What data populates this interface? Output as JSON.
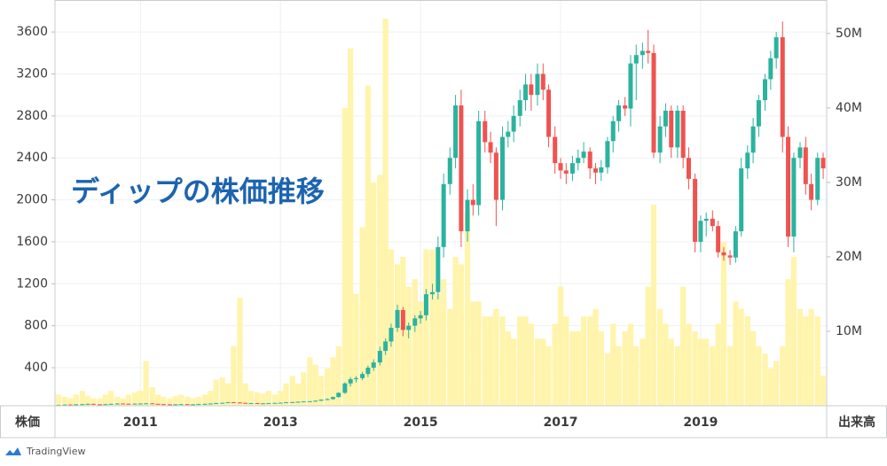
{
  "chart_data": {
    "type": "candlestick",
    "title": "ディップの株価推移",
    "ylabel": "株価",
    "y2label": "出来高",
    "branding": "TradingView",
    "grid": true,
    "x": [
      2009.83,
      2009.92,
      2010,
      2010.08,
      2010.17,
      2010.25,
      2010.33,
      2010.42,
      2010.5,
      2010.58,
      2010.67,
      2010.75,
      2010.83,
      2010.92,
      2011,
      2011.08,
      2011.17,
      2011.25,
      2011.33,
      2011.42,
      2011.5,
      2011.58,
      2011.67,
      2011.75,
      2011.83,
      2011.92,
      2012,
      2012.08,
      2012.17,
      2012.25,
      2012.33,
      2012.42,
      2012.5,
      2012.58,
      2012.67,
      2012.75,
      2012.83,
      2012.92,
      2013,
      2013.08,
      2013.17,
      2013.25,
      2013.33,
      2013.42,
      2013.5,
      2013.58,
      2013.67,
      2013.75,
      2013.83,
      2013.92,
      2014,
      2014.08,
      2014.17,
      2014.25,
      2014.33,
      2014.42,
      2014.5,
      2014.58,
      2014.67,
      2014.75,
      2014.83,
      2014.92,
      2015,
      2015.08,
      2015.17,
      2015.25,
      2015.33,
      2015.42,
      2015.5,
      2015.58,
      2015.67,
      2015.75,
      2015.83,
      2015.92,
      2016,
      2016.08,
      2016.17,
      2016.25,
      2016.33,
      2016.42,
      2016.5,
      2016.58,
      2016.67,
      2016.75,
      2016.83,
      2016.92,
      2017,
      2017.08,
      2017.17,
      2017.25,
      2017.33,
      2017.42,
      2017.5,
      2017.58,
      2017.67,
      2017.75,
      2017.83,
      2017.92,
      2018,
      2018.08,
      2018.17,
      2018.25,
      2018.33,
      2018.42,
      2018.5,
      2018.58,
      2018.67,
      2018.75,
      2018.83,
      2018.92,
      2019,
      2019.08,
      2019.17,
      2019.25,
      2019.33,
      2019.42,
      2019.5,
      2019.58,
      2019.67,
      2019.75,
      2019.83,
      2019.92,
      2020,
      2020.08,
      2020.17,
      2020.25,
      2020.33,
      2020.42,
      2020.5,
      2020.58,
      2020.67,
      2020.75
    ],
    "candles": {
      "up_color": "#2bb39e",
      "down_color": "#ef5350",
      "open": [
        44,
        45,
        48,
        46,
        50,
        52,
        55,
        50,
        48,
        52,
        55,
        58,
        56,
        54,
        57,
        58,
        60,
        55,
        52,
        50,
        48,
        50,
        52,
        49,
        50,
        53,
        55,
        58,
        62,
        65,
        70,
        68,
        64,
        60,
        62,
        58,
        60,
        62,
        64,
        66,
        70,
        72,
        75,
        78,
        80,
        85,
        95,
        100,
        120,
        160,
        250,
        290,
        300,
        340,
        400,
        450,
        560,
        650,
        780,
        950,
        760,
        800,
        870,
        900,
        1100,
        1120,
        1550,
        2150,
        2400,
        2900,
        1700,
        2000,
        1950,
        2750,
        2550,
        2450,
        2000,
        2600,
        2650,
        2800,
        2950,
        3100,
        3000,
        3200,
        3050,
        2600,
        2350,
        2280,
        2250,
        2350,
        2400,
        2460,
        2300,
        2260,
        2310,
        2560,
        2750,
        2900,
        2870,
        3300,
        3380,
        3420,
        3400,
        2450,
        2700,
        2850,
        2500,
        2850,
        2400,
        2200,
        1600,
        1800,
        1820,
        1750,
        1500,
        1470,
        1450,
        1700,
        2300,
        2450,
        2700,
        2950,
        3150,
        3350,
        3550,
        2600,
        1650,
        2400,
        2500,
        2150,
        2000,
        2400
      ],
      "high": [
        47,
        50,
        50,
        52,
        54,
        58,
        57,
        52,
        55,
        58,
        61,
        60,
        58,
        59,
        61,
        63,
        62,
        57,
        54,
        52,
        52,
        54,
        54,
        52,
        55,
        58,
        61,
        65,
        68,
        73,
        73,
        72,
        66,
        64,
        64,
        62,
        63,
        65,
        68,
        72,
        74,
        77,
        80,
        82,
        88,
        98,
        108,
        125,
        165,
        260,
        310,
        320,
        360,
        420,
        480,
        600,
        680,
        820,
        1000,
        980,
        830,
        900,
        940,
        1150,
        1200,
        1650,
        2250,
        2500,
        3000,
        3050,
        2100,
        2150,
        2850,
        2850,
        2650,
        2500,
        2700,
        2750,
        2900,
        3050,
        3200,
        3200,
        3300,
        3300,
        3100,
        2700,
        2400,
        2350,
        2420,
        2480,
        2550,
        2500,
        2350,
        2380,
        2600,
        2800,
        2950,
        2980,
        3380,
        3480,
        3500,
        3620,
        3480,
        2800,
        2920,
        2900,
        2900,
        2900,
        2500,
        2250,
        1850,
        1880,
        1900,
        1800,
        1550,
        1520,
        1750,
        2400,
        2520,
        2780,
        3000,
        3200,
        3420,
        3600,
        3700,
        2700,
        2450,
        2550,
        2600,
        2250,
        2450,
        2450
      ],
      "low": [
        42,
        43,
        44,
        44,
        48,
        50,
        48,
        46,
        46,
        50,
        53,
        54,
        52,
        52,
        55,
        55,
        53,
        50,
        48,
        46,
        46,
        48,
        47,
        47,
        48,
        51,
        53,
        55,
        59,
        62,
        65,
        61,
        58,
        57,
        56,
        55,
        57,
        59,
        61,
        63,
        67,
        69,
        72,
        75,
        77,
        82,
        90,
        96,
        115,
        150,
        220,
        260,
        280,
        310,
        370,
        420,
        520,
        600,
        740,
        700,
        680,
        740,
        820,
        850,
        1050,
        1050,
        1450,
        2050,
        2300,
        1550,
        1600,
        1850,
        1850,
        2450,
        2350,
        1750,
        1900,
        2500,
        2550,
        2700,
        2850,
        2850,
        2900,
        2950,
        2500,
        2250,
        2200,
        2150,
        2180,
        2280,
        2350,
        2200,
        2150,
        2180,
        2250,
        2450,
        2650,
        2800,
        2700,
        2950,
        3250,
        3300,
        2400,
        2350,
        2600,
        2400,
        2400,
        2300,
        2100,
        1500,
        1500,
        1650,
        1700,
        1450,
        1420,
        1380,
        1400,
        1650,
        2200,
        2350,
        2600,
        2850,
        3050,
        3250,
        2450,
        1550,
        1500,
        2300,
        2050,
        1900,
        1950,
        2200
      ],
      "close": [
        45,
        48,
        46,
        50,
        52,
        55,
        50,
        48,
        52,
        55,
        58,
        56,
        54,
        57,
        58,
        60,
        55,
        52,
        50,
        48,
        50,
        52,
        49,
        50,
        53,
        55,
        58,
        62,
        65,
        70,
        68,
        64,
        60,
        62,
        58,
        60,
        62,
        64,
        66,
        70,
        72,
        75,
        78,
        80,
        85,
        95,
        100,
        120,
        160,
        250,
        290,
        300,
        340,
        400,
        450,
        560,
        650,
        780,
        950,
        760,
        800,
        870,
        900,
        1100,
        1120,
        1550,
        2150,
        2400,
        2900,
        1700,
        2000,
        1950,
        2750,
        2550,
        2450,
        2000,
        2600,
        2650,
        2800,
        2950,
        3100,
        3000,
        3200,
        3050,
        2600,
        2350,
        2280,
        2250,
        2350,
        2400,
        2460,
        2300,
        2260,
        2310,
        2560,
        2750,
        2900,
        2870,
        3300,
        3380,
        3420,
        3400,
        2450,
        2700,
        2850,
        2500,
        2850,
        2400,
        2200,
        1600,
        1800,
        1820,
        1750,
        1500,
        1470,
        1450,
        1700,
        2300,
        2450,
        2700,
        2950,
        3150,
        3350,
        3550,
        2600,
        1650,
        2400,
        2500,
        2150,
        2000,
        2400,
        2300
      ]
    },
    "volume": {
      "axis": "y2",
      "color": "#fff3a6",
      "values": [
        1500000,
        1200000,
        1000000,
        1500000,
        2000000,
        1300000,
        1000000,
        1000000,
        1500000,
        2000000,
        1200000,
        1000000,
        1500000,
        1800000,
        2000000,
        6000000,
        2500000,
        1500000,
        1200000,
        1000000,
        1300000,
        1500000,
        1200000,
        1000000,
        1200000,
        1500000,
        2000000,
        3500000,
        3800000,
        3000000,
        8000000,
        14500000,
        3000000,
        2000000,
        1800000,
        1600000,
        2000000,
        1500000,
        2000000,
        3000000,
        4000000,
        3000000,
        4500000,
        6500000,
        5500000,
        4000000,
        5000000,
        6500000,
        8000000,
        40000000,
        48000000,
        15000000,
        24000000,
        43000000,
        30000000,
        31000000,
        52000000,
        21000000,
        19000000,
        20000000,
        16000000,
        17000000,
        14000000,
        21000000,
        21000000,
        15000000,
        17000000,
        13000000,
        20000000,
        19000000,
        26000000,
        14000000,
        14000000,
        12000000,
        12000000,
        13000000,
        12000000,
        10000000,
        9000000,
        12000000,
        12000000,
        11000000,
        9000000,
        9000000,
        8000000,
        11000000,
        16000000,
        12000000,
        10000000,
        10000000,
        12000000,
        12000000,
        13000000,
        10000000,
        7000000,
        11000000,
        8000000,
        10000000,
        11000000,
        8000000,
        9000000,
        16000000,
        27000000,
        13000000,
        11000000,
        9000000,
        8000000,
        16000000,
        11000000,
        10000000,
        9000000,
        9000000,
        8000000,
        11000000,
        22000000,
        8000000,
        14000000,
        13000000,
        12000000,
        10000000,
        8000000,
        7000000,
        5000000,
        6000000,
        8000000,
        17000000,
        20000000,
        13000000,
        12000000,
        13000000,
        12000000,
        4000000
      ]
    },
    "xlim": [
      2009.78,
      2020.8
    ],
    "xticks": [
      2011,
      2013,
      2015,
      2017,
      2019
    ],
    "ylim": [
      37,
      3905
    ],
    "yticks": [
      400,
      800,
      1200,
      1600,
      2000,
      2400,
      2800,
      3200,
      3600
    ],
    "y2lim": [
      0,
      54500000
    ],
    "y2ticks": [
      {
        "value": 10000000,
        "label": "10M"
      },
      {
        "value": 20000000,
        "label": "20M"
      },
      {
        "value": 30000000,
        "label": "30M"
      },
      {
        "value": 40000000,
        "label": "40M"
      },
      {
        "value": 50000000,
        "label": "50M"
      }
    ]
  }
}
